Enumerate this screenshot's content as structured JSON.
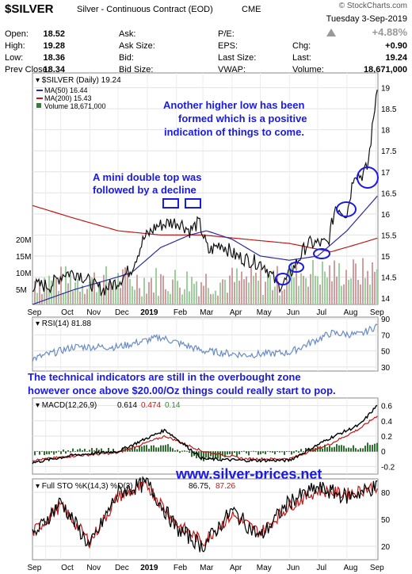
{
  "header": {
    "symbol": "$SILVER",
    "name": "Silver - Continuous Contract (EOD)",
    "exchange": "CME",
    "brand": "© StockCharts.com",
    "date": "Tuesday  3-Sep-2019",
    "change_pct": "+4.88%"
  },
  "quote": {
    "rows": [
      [
        {
          "label": "Open:",
          "value": "18.52"
        },
        {
          "label": "Ask:",
          "value": ""
        },
        {
          "label": "P/E:",
          "value": ""
        },
        {
          "label": "",
          "value": ""
        }
      ],
      [
        {
          "label": "High:",
          "value": "19.28"
        },
        {
          "label": "Ask Size:",
          "value": ""
        },
        {
          "label": "EPS:",
          "value": ""
        },
        {
          "label": "Chg:",
          "value": "+0.90"
        }
      ],
      [
        {
          "label": "Low:",
          "value": "18.36"
        },
        {
          "label": "Bid:",
          "value": ""
        },
        {
          "label": "Last Size:",
          "value": ""
        },
        {
          "label": "Last:",
          "value": "19.24"
        }
      ],
      [
        {
          "label": "Prev Close:",
          "value": "18.34"
        },
        {
          "label": "Bid Size:",
          "value": ""
        },
        {
          "label": "VWAP:",
          "value": ""
        },
        {
          "label": "Volume:",
          "value": "18,671,000"
        }
      ]
    ]
  },
  "colors": {
    "price": "#111111",
    "ma50": "#2b2ba8",
    "ma200": "#c01818",
    "volume": "#3a7a3a",
    "annotation": "#1a1ae0",
    "rsi": "#6a8cc4",
    "macd_hist": "#2f6f2f"
  },
  "watermark": "www.silver-prices.net",
  "annotations": {
    "note1": [
      "Another higher low has been",
      "formed which is a positive",
      "indication of things to come."
    ],
    "note2": [
      "A mini double top was",
      "followed by a decline"
    ],
    "note3": [
      "The technical indicators are still in the overbought zone",
      "however once above $20.00/Oz things could really start to pop."
    ]
  },
  "chart_data": [
    {
      "type": "line",
      "title": "$SILVER (Daily) 19.24",
      "series": [
        {
          "name": "$SILVER (Daily) 19.24",
          "x": [
            "2018-09-01",
            "2018-09-20",
            "2018-10-05",
            "2018-10-20",
            "2018-11-05",
            "2018-11-15",
            "2018-12-01",
            "2018-12-15",
            "2018-12-28",
            "2019-01-10",
            "2019-01-25",
            "2019-02-05",
            "2019-02-15",
            "2019-02-25",
            "2019-03-07",
            "2019-03-20",
            "2019-04-05",
            "2019-04-20",
            "2019-05-05",
            "2019-05-20",
            "2019-05-28",
            "2019-06-10",
            "2019-06-20",
            "2019-07-01",
            "2019-07-12",
            "2019-07-20",
            "2019-08-01",
            "2019-08-09",
            "2019-08-16",
            "2019-08-23",
            "2019-08-29",
            "2019-09-03"
          ],
          "values": [
            14.3,
            14.3,
            14.6,
            14.6,
            14.3,
            14.2,
            14.4,
            14.7,
            15.4,
            15.7,
            15.8,
            15.8,
            15.6,
            15.8,
            15.1,
            15.3,
            15.0,
            14.9,
            14.8,
            14.3,
            14.4,
            14.9,
            15.3,
            15.3,
            15.3,
            16.2,
            16.0,
            17.0,
            16.9,
            17.1,
            18.2,
            19.24
          ]
        },
        {
          "name": "MA(50) 16.44",
          "x": [
            "2018-09-01",
            "2018-10-15",
            "2018-11-15",
            "2018-12-15",
            "2019-01-15",
            "2019-02-15",
            "2019-03-05",
            "2019-04-01",
            "2019-05-01",
            "2019-06-01",
            "2019-07-01",
            "2019-08-01",
            "2019-09-03"
          ],
          "values": [
            13.85,
            14.2,
            14.4,
            14.6,
            15.2,
            15.5,
            15.6,
            15.4,
            15.0,
            14.9,
            15.0,
            15.6,
            16.44
          ]
        },
        {
          "name": "MA(200) 15.43",
          "x": [
            "2018-09-01",
            "2018-10-15",
            "2018-12-01",
            "2019-01-15",
            "2019-03-01",
            "2019-04-15",
            "2019-06-01",
            "2019-07-15",
            "2019-08-15",
            "2019-09-03"
          ],
          "values": [
            16.2,
            15.9,
            15.6,
            15.5,
            15.5,
            15.4,
            15.3,
            15.1,
            15.3,
            15.43
          ]
        }
      ],
      "volume": {
        "name": "Volume 18,671,000",
        "ticks": [
          "5M",
          "10M",
          "15M",
          "20M"
        ],
        "last": 18671000
      },
      "yticks": [
        14.0,
        14.5,
        15.0,
        15.5,
        16.0,
        16.5,
        17.0,
        17.5,
        18.0,
        18.5,
        19.0
      ],
      "ylim": [
        13.85,
        19.35
      ],
      "xticks": [
        "Sep",
        "Oct",
        "Nov",
        "Dec",
        "2019",
        "Feb",
        "Mar",
        "Apr",
        "May",
        "Jun",
        "Jul",
        "Aug",
        "Sep"
      ],
      "legend_position": "top-left",
      "grid": true
    },
    {
      "type": "line",
      "title": "RSI(14) 81.88",
      "series": [
        {
          "name": "RSI(14) 81.88",
          "x": [
            "2018-09-01",
            "2018-10-15",
            "2018-12-01",
            "2019-01-15",
            "2019-03-01",
            "2019-04-15",
            "2019-06-01",
            "2019-07-15",
            "2019-08-15",
            "2019-09-03"
          ],
          "values": [
            40,
            55,
            55,
            67,
            50,
            45,
            48,
            72,
            70,
            81.88
          ]
        }
      ],
      "yticks": [
        30,
        50,
        70,
        90
      ],
      "ylim": [
        25,
        92
      ]
    },
    {
      "type": "line",
      "title": "MACD(12,26,9) 0.614, 0.474, 0.140",
      "series": [
        {
          "name": "MACD(12,26,9) 0.614",
          "x": [
            "2018-09-01",
            "2018-10-15",
            "2018-12-01",
            "2019-01-20",
            "2019-03-01",
            "2019-04-15",
            "2019-06-01",
            "2019-07-15",
            "2019-08-15",
            "2019-09-03"
          ],
          "values": [
            -0.15,
            -0.05,
            0.0,
            0.28,
            -0.1,
            -0.12,
            -0.12,
            0.18,
            0.35,
            0.614
          ]
        },
        {
          "name": "0.474",
          "x": [
            "2018-09-01",
            "2018-10-15",
            "2018-12-01",
            "2019-01-20",
            "2019-03-01",
            "2019-04-15",
            "2019-06-01",
            "2019-07-15",
            "2019-08-15",
            "2019-09-03"
          ],
          "values": [
            -0.12,
            -0.06,
            -0.02,
            0.2,
            0.0,
            -0.1,
            -0.1,
            0.1,
            0.3,
            0.474
          ]
        },
        {
          "name": "0.140",
          "x": [
            "2018-09-01",
            "2018-10-15",
            "2018-12-01",
            "2019-01-20",
            "2019-03-01",
            "2019-04-15",
            "2019-06-01",
            "2019-07-15",
            "2019-08-15",
            "2019-09-03"
          ],
          "values": [
            -0.03,
            0.01,
            0.02,
            0.08,
            -0.1,
            -0.02,
            -0.02,
            0.08,
            0.05,
            0.14
          ]
        }
      ],
      "yticks": [
        -0.2,
        0.0,
        0.2,
        0.4,
        0.6
      ],
      "ylim": [
        -0.3,
        0.7
      ]
    },
    {
      "type": "line",
      "title": "Full STO %K(14,3) %D(3) 86.75, 87.26",
      "series": [
        {
          "name": "Full STO %K(14,3) %D(3) 86.75",
          "x": [
            "2018-09-01",
            "2018-10-01",
            "2018-11-01",
            "2018-12-01",
            "2019-01-01",
            "2019-02-01",
            "2019-03-01",
            "2019-04-01",
            "2019-05-01",
            "2019-06-01",
            "2019-07-01",
            "2019-08-01",
            "2019-09-03"
          ],
          "values": [
            30,
            70,
            20,
            80,
            90,
            40,
            20,
            60,
            30,
            70,
            85,
            75,
            86.75
          ]
        },
        {
          "name": "87.26",
          "x": [
            "2018-09-01",
            "2018-10-01",
            "2018-11-01",
            "2018-12-01",
            "2019-01-01",
            "2019-02-01",
            "2019-03-01",
            "2019-04-01",
            "2019-05-01",
            "2019-06-01",
            "2019-07-01",
            "2019-08-01",
            "2019-09-03"
          ],
          "values": [
            35,
            65,
            25,
            75,
            88,
            45,
            25,
            55,
            35,
            65,
            82,
            78,
            87.26
          ]
        }
      ],
      "yticks": [
        20,
        50,
        80
      ],
      "ylim": [
        5,
        95
      ]
    }
  ]
}
